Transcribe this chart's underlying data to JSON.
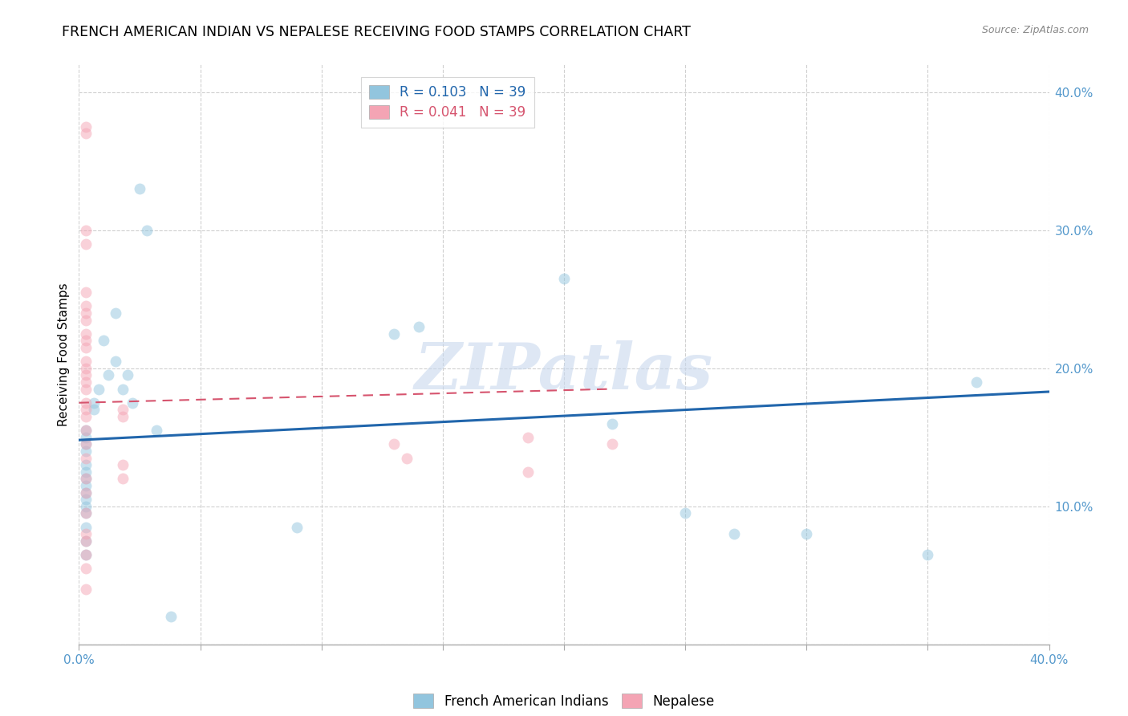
{
  "title": "FRENCH AMERICAN INDIAN VS NEPALESE RECEIVING FOOD STAMPS CORRELATION CHART",
  "source": "Source: ZipAtlas.com",
  "ylabel": "Receiving Food Stamps",
  "xlim": [
    0.0,
    0.4
  ],
  "ylim": [
    0.0,
    0.42
  ],
  "yticks": [
    0.0,
    0.1,
    0.2,
    0.3,
    0.4
  ],
  "xticks": [
    0.0,
    0.05,
    0.1,
    0.15,
    0.2,
    0.25,
    0.3,
    0.35,
    0.4
  ],
  "xtick_labels": [
    "0.0%",
    "",
    "",
    "",
    "",
    "",
    "",
    "",
    "40.0%"
  ],
  "legend_entry1_label": "R = 0.103   N = 39",
  "legend_entry2_label": "R = 0.041   N = 39",
  "blue_scatter_x": [
    0.003,
    0.003,
    0.003,
    0.003,
    0.003,
    0.003,
    0.003,
    0.003,
    0.003,
    0.003,
    0.003,
    0.003,
    0.003,
    0.003,
    0.003,
    0.006,
    0.006,
    0.008,
    0.01,
    0.012,
    0.015,
    0.015,
    0.018,
    0.02,
    0.022,
    0.025,
    0.028,
    0.032,
    0.038,
    0.09,
    0.13,
    0.14,
    0.2,
    0.22,
    0.25,
    0.27,
    0.3,
    0.35,
    0.37
  ],
  "blue_scatter_y": [
    0.155,
    0.15,
    0.145,
    0.14,
    0.13,
    0.125,
    0.12,
    0.115,
    0.11,
    0.105,
    0.1,
    0.095,
    0.085,
    0.075,
    0.065,
    0.175,
    0.17,
    0.185,
    0.22,
    0.195,
    0.205,
    0.24,
    0.185,
    0.195,
    0.175,
    0.33,
    0.3,
    0.155,
    0.02,
    0.085,
    0.225,
    0.23,
    0.265,
    0.16,
    0.095,
    0.08,
    0.08,
    0.065,
    0.19
  ],
  "pink_scatter_x": [
    0.003,
    0.003,
    0.003,
    0.003,
    0.003,
    0.003,
    0.003,
    0.003,
    0.003,
    0.003,
    0.003,
    0.003,
    0.003,
    0.003,
    0.003,
    0.003,
    0.003,
    0.003,
    0.003,
    0.003,
    0.003,
    0.003,
    0.003,
    0.003,
    0.003,
    0.018,
    0.018,
    0.018,
    0.018,
    0.13,
    0.135,
    0.185,
    0.185,
    0.22,
    0.003,
    0.003,
    0.003,
    0.003,
    0.003
  ],
  "pink_scatter_y": [
    0.375,
    0.37,
    0.29,
    0.255,
    0.245,
    0.24,
    0.235,
    0.225,
    0.22,
    0.215,
    0.205,
    0.2,
    0.195,
    0.19,
    0.185,
    0.175,
    0.17,
    0.165,
    0.155,
    0.145,
    0.135,
    0.12,
    0.11,
    0.095,
    0.08,
    0.17,
    0.165,
    0.13,
    0.12,
    0.145,
    0.135,
    0.15,
    0.125,
    0.145,
    0.075,
    0.065,
    0.055,
    0.04,
    0.3
  ],
  "blue_line_x": [
    0.0,
    0.4
  ],
  "blue_line_y": [
    0.148,
    0.183
  ],
  "pink_line_x": [
    0.0,
    0.22
  ],
  "pink_line_y": [
    0.175,
    0.185
  ],
  "watermark": "ZIPatlas",
  "scatter_size": 100,
  "scatter_alpha": 0.5,
  "blue_color": "#92c5de",
  "pink_color": "#f4a4b4",
  "blue_line_color": "#2166ac",
  "pink_line_color": "#d6546e",
  "axis_color": "#5599cc",
  "grid_color": "#d0d0d0",
  "title_fontsize": 12.5,
  "label_fontsize": 11,
  "tick_fontsize": 11
}
